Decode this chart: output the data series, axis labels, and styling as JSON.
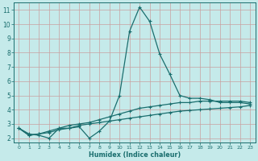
{
  "xlabel": "Humidex (Indice chaleur)",
  "ylabel": "",
  "bg_color": "#c5eaea",
  "grid_color": "#b0d4d4",
  "line_color": "#1a6e6e",
  "x_values": [
    0,
    1,
    2,
    3,
    4,
    5,
    6,
    7,
    8,
    9,
    10,
    11,
    12,
    13,
    14,
    15,
    16,
    17,
    18,
    19,
    20,
    21,
    22,
    23
  ],
  "series1": [
    2.7,
    2.3,
    2.2,
    2.0,
    2.7,
    2.7,
    2.8,
    2.0,
    2.5,
    3.2,
    5.0,
    9.5,
    11.2,
    10.2,
    7.9,
    6.5,
    5.0,
    4.8,
    4.8,
    4.7,
    4.5,
    4.5,
    4.5,
    4.4
  ],
  "series2": [
    2.7,
    2.2,
    2.3,
    2.5,
    2.7,
    2.9,
    3.0,
    3.1,
    3.3,
    3.5,
    3.7,
    3.9,
    4.1,
    4.2,
    4.3,
    4.4,
    4.5,
    4.5,
    4.6,
    4.6,
    4.6,
    4.6,
    4.6,
    4.5
  ],
  "series3": [
    2.7,
    2.2,
    2.3,
    2.4,
    2.6,
    2.7,
    2.9,
    3.0,
    3.1,
    3.2,
    3.3,
    3.4,
    3.5,
    3.6,
    3.7,
    3.8,
    3.9,
    3.95,
    4.0,
    4.05,
    4.1,
    4.15,
    4.2,
    4.3
  ],
  "ylim": [
    1.7,
    11.5
  ],
  "yticks": [
    2,
    3,
    4,
    5,
    6,
    7,
    8,
    9,
    10,
    11
  ],
  "xlim": [
    -0.5,
    23.5
  ],
  "xticks": [
    0,
    1,
    2,
    3,
    4,
    5,
    6,
    7,
    8,
    9,
    10,
    11,
    12,
    13,
    14,
    15,
    16,
    17,
    18,
    19,
    20,
    21,
    22,
    23
  ]
}
